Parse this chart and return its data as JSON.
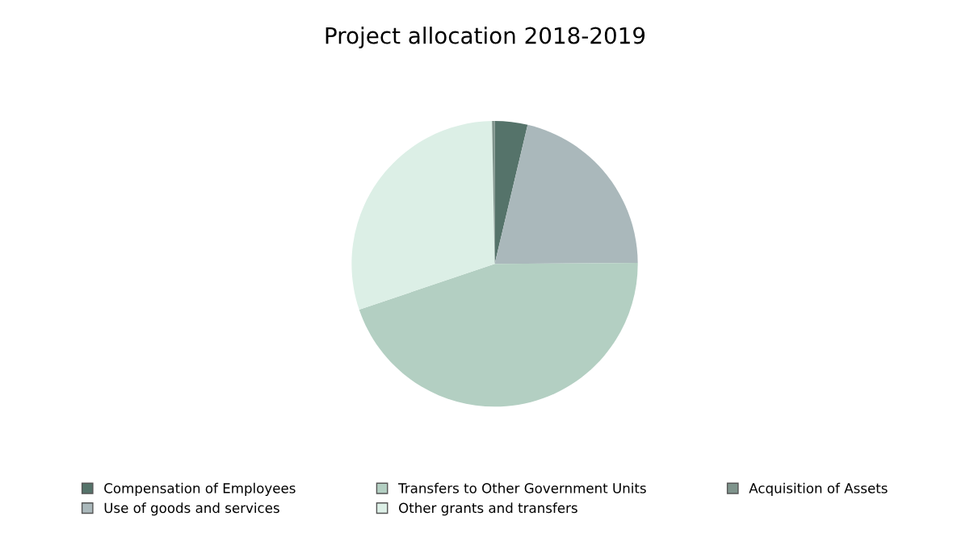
{
  "chart_data": {
    "type": "pie",
    "title": "Project allocation 2018-2019",
    "categories": [
      "Compensation of Employees",
      "Use of goods and services",
      "Transfers to Other Government Units",
      "Other grants and transfers",
      "Acquisition of Assets"
    ],
    "values": [
      3.7,
      21.2,
      44.9,
      29.9,
      0.3
    ],
    "colors": [
      "#55736a",
      "#aab8bb",
      "#b3cfc2",
      "#dcefe6",
      "#7f948c"
    ],
    "legend": "bottom"
  }
}
